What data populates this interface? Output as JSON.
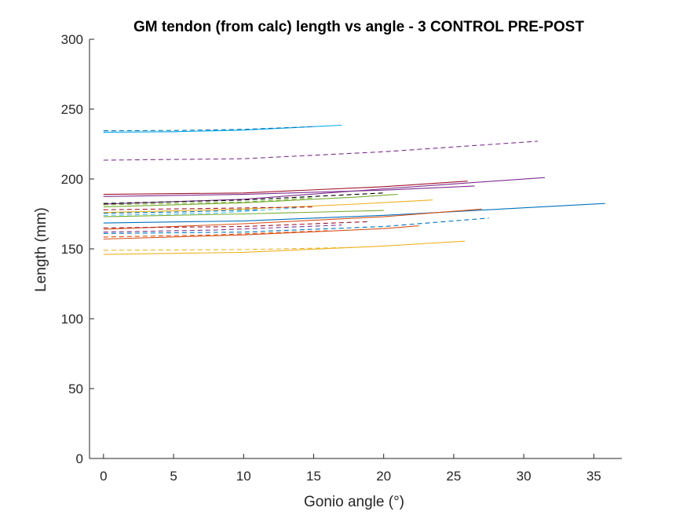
{
  "chart_data": {
    "type": "line",
    "title": "GM tendon (from calc) length vs angle - 3 CONTROL PRE-POST",
    "xlabel": "Gonio angle (°)",
    "ylabel": "Length (mm)",
    "xlim": [
      -1,
      37
    ],
    "ylim": [
      0,
      300
    ],
    "xticks": [
      0,
      5,
      10,
      15,
      20,
      25,
      30,
      35
    ],
    "yticks": [
      0,
      50,
      100,
      150,
      200,
      250,
      300
    ],
    "grid": false,
    "legend": "none",
    "series": [
      {
        "color": "#00A9E6",
        "dash": "solid",
        "x": [
          0,
          5,
          10,
          17
        ],
        "y": [
          233.5,
          233.8,
          235.0,
          238.5
        ]
      },
      {
        "color": "#0072BD",
        "dash": "dashed",
        "x": [
          0,
          5,
          10,
          15
        ],
        "y": [
          234.5,
          234.7,
          235.5,
          237.5
        ]
      },
      {
        "color": "#7E2F8E",
        "dash": "dashed",
        "x": [
          0,
          10,
          20,
          31
        ],
        "y": [
          213.5,
          214.5,
          219.5,
          227.0
        ]
      },
      {
        "color": "#7E2F8E",
        "dash": "solid",
        "x": [
          0,
          10,
          20,
          31.5
        ],
        "y": [
          182.0,
          185.5,
          193.0,
          201.0
        ]
      },
      {
        "color": "#A2142F",
        "dash": "solid",
        "x": [
          0,
          10,
          20,
          26
        ],
        "y": [
          189.0,
          190.0,
          194.5,
          198.5
        ]
      },
      {
        "color": "#7E2F8E",
        "dash": "solid",
        "x": [
          0,
          10,
          20,
          26.5
        ],
        "y": [
          187.5,
          189.0,
          192.0,
          195.0
        ]
      },
      {
        "color": "#0072BD",
        "dash": "solid",
        "x": [
          0,
          10,
          20,
          35.8
        ],
        "y": [
          168.5,
          170.0,
          174.0,
          182.5
        ]
      },
      {
        "color": "#D95319",
        "dash": "solid",
        "x": [
          0,
          10,
          20,
          27
        ],
        "y": [
          164.0,
          168.0,
          173.0,
          178.5
        ]
      },
      {
        "color": "#D95319",
        "dash": "solid",
        "x": [
          0,
          10,
          20,
          22.5
        ],
        "y": [
          157.0,
          160.0,
          164.5,
          166.5
        ]
      },
      {
        "color": "#0072BD",
        "dash": "dashed",
        "x": [
          0,
          10,
          20,
          27.5
        ],
        "y": [
          161.0,
          162.0,
          166.0,
          172.0
        ]
      },
      {
        "color": "#EDB120",
        "dash": "solid",
        "x": [
          0,
          10,
          20,
          25.8
        ],
        "y": [
          146.0,
          147.5,
          152.0,
          155.5
        ]
      },
      {
        "color": "#EDB120",
        "dash": "dashed",
        "x": [
          0,
          10,
          18
        ],
        "y": [
          149.0,
          149.5,
          151.0
        ]
      },
      {
        "color": "#EDB120",
        "dash": "solid",
        "x": [
          0,
          10,
          18,
          23.5
        ],
        "y": [
          176.0,
          178.5,
          182.0,
          185.0
        ]
      },
      {
        "color": "#77AC30",
        "dash": "solid",
        "x": [
          0,
          10,
          18,
          21
        ],
        "y": [
          180.0,
          183.0,
          187.0,
          189.0
        ]
      },
      {
        "color": "#77AC30",
        "dash": "dashed",
        "x": [
          0,
          10,
          15
        ],
        "y": [
          181.5,
          183.5,
          186.5
        ]
      },
      {
        "color": "#4DBEEE",
        "dash": "dashed",
        "x": [
          0,
          8,
          14
        ],
        "y": [
          174.0,
          175.5,
          179.5
        ]
      },
      {
        "color": "#0072BD",
        "dash": "dashed",
        "x": [
          0,
          6,
          11
        ],
        "y": [
          175.5,
          176.5,
          178.0
        ]
      },
      {
        "color": "#A2142F",
        "dash": "dashed",
        "x": [
          0,
          8,
          15
        ],
        "y": [
          178.0,
          179.0,
          180.0
        ]
      },
      {
        "color": "#000000",
        "dash": "dashed",
        "x": [
          0,
          10,
          20
        ],
        "y": [
          182.5,
          185.0,
          190.0
        ]
      },
      {
        "color": "#7E2F8E",
        "dash": "dashed",
        "x": [
          0,
          8,
          17
        ],
        "y": [
          162.0,
          163.5,
          167.0
        ]
      },
      {
        "color": "#A2142F",
        "dash": "dashed",
        "x": [
          0,
          10,
          19
        ],
        "y": [
          165.0,
          166.0,
          169.5
        ]
      },
      {
        "color": "#D95319",
        "dash": "dashed",
        "x": [
          0,
          8,
          16
        ],
        "y": [
          158.5,
          160.0,
          163.0
        ]
      },
      {
        "color": "#77AC30",
        "dash": "solid",
        "x": [
          0,
          10,
          20
        ],
        "y": [
          173.0,
          175.0,
          177.5
        ]
      }
    ]
  }
}
